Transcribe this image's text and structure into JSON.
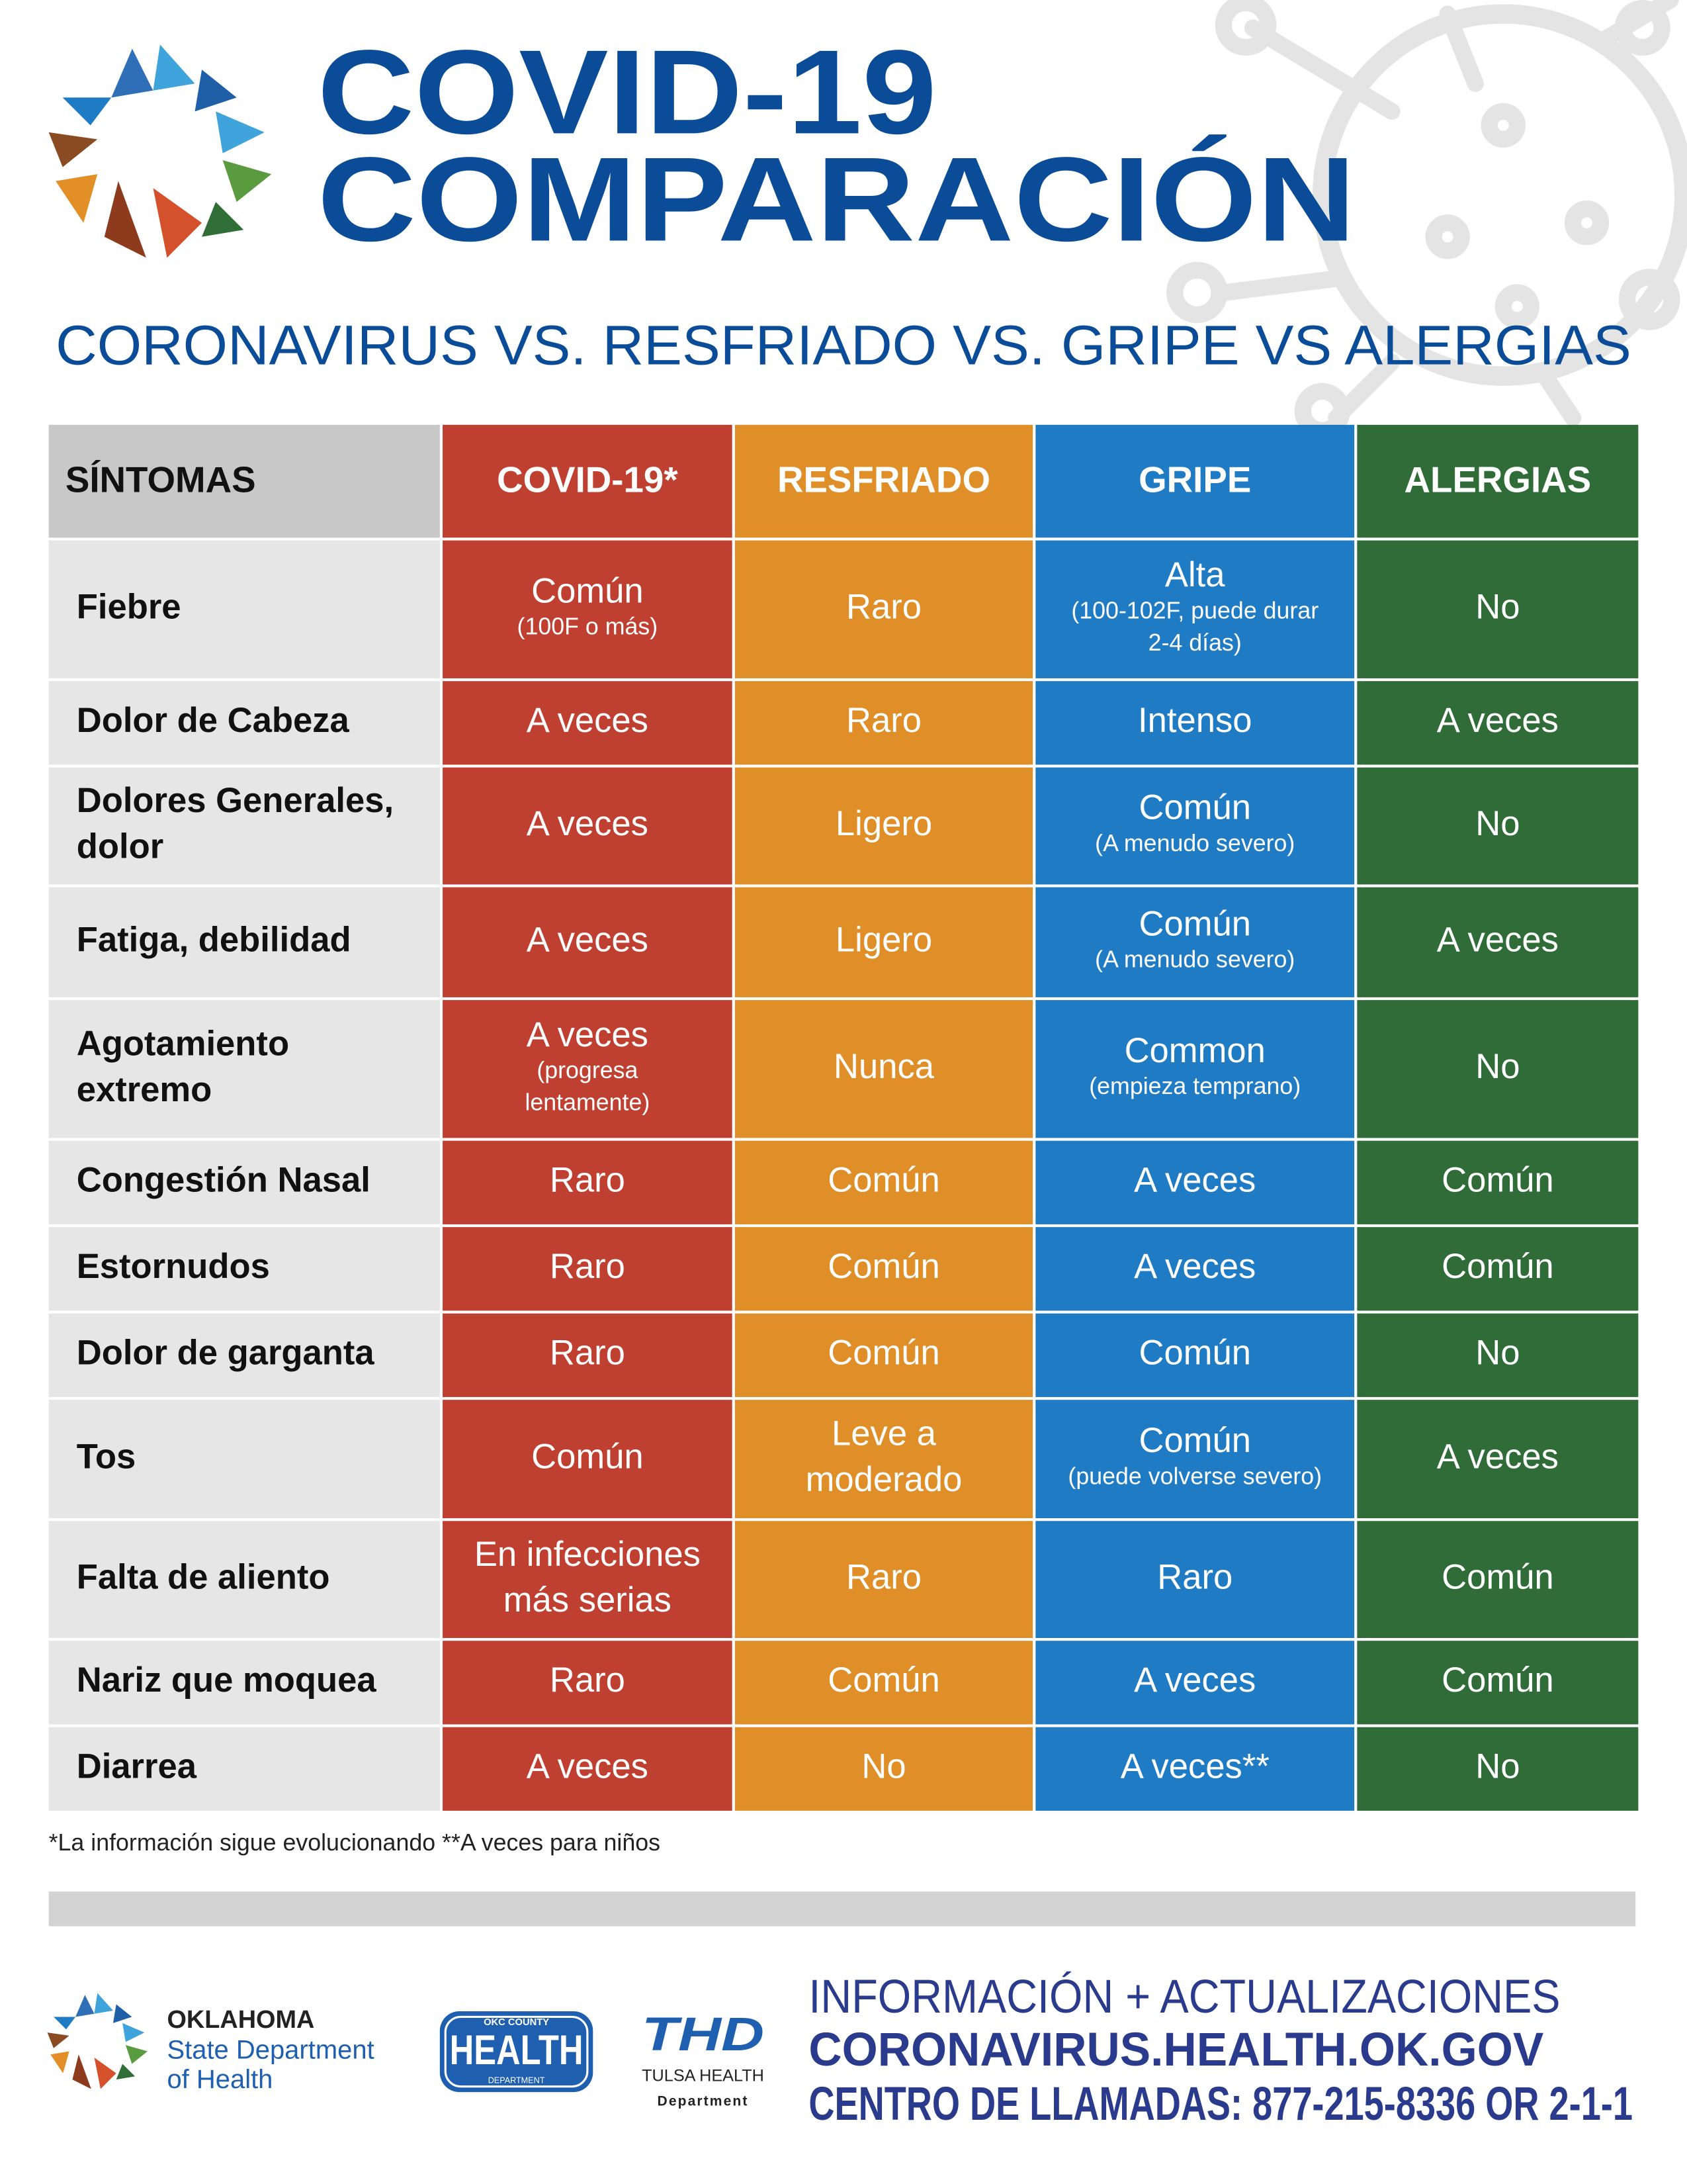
{
  "header": {
    "title_line1": "COVID-19",
    "title_line2": "COMPARACIÓN",
    "subtitle": "CORONAVIRUS VS. RESFRIADO VS. GRIPE VS ALERGIAS"
  },
  "table": {
    "columns": [
      "SÍNTOMAS",
      "COVID-19*",
      "RESFRIADO",
      "GRIPE",
      "ALERGIAS"
    ],
    "rows": [
      {
        "symptom": [
          "Fiebre"
        ],
        "cells": [
          {
            "text": [
              "Común"
            ],
            "note": [
              "(100F o más)"
            ]
          },
          {
            "text": [
              "Raro"
            ]
          },
          {
            "text": [
              "Alta"
            ],
            "note": [
              "(100-102F, puede durar",
              "2-4 días)"
            ]
          },
          {
            "text": [
              "No"
            ]
          }
        ]
      },
      {
        "symptom": [
          "Dolor de Cabeza"
        ],
        "cells": [
          {
            "text": [
              "A veces"
            ]
          },
          {
            "text": [
              "Raro"
            ]
          },
          {
            "text": [
              "Intenso"
            ]
          },
          {
            "text": [
              "A veces"
            ]
          }
        ]
      },
      {
        "symptom": [
          "Dolores Generales,",
          "dolor"
        ],
        "cells": [
          {
            "text": [
              "A veces"
            ]
          },
          {
            "text": [
              "Ligero"
            ]
          },
          {
            "text": [
              "Común"
            ],
            "note": [
              "(A menudo severo)"
            ]
          },
          {
            "text": [
              "No"
            ]
          }
        ]
      },
      {
        "symptom": [
          "Fatiga, debilidad"
        ],
        "cells": [
          {
            "text": [
              "A veces"
            ]
          },
          {
            "text": [
              "Ligero"
            ]
          },
          {
            "text": [
              "Común"
            ],
            "note": [
              "(A menudo severo)"
            ]
          },
          {
            "text": [
              "A veces"
            ]
          }
        ]
      },
      {
        "symptom": [
          "Agotamiento",
          "extremo"
        ],
        "cells": [
          {
            "text": [
              "A veces"
            ],
            "note": [
              "(progresa",
              "lentamente)"
            ]
          },
          {
            "text": [
              "Nunca"
            ]
          },
          {
            "text": [
              "Common"
            ],
            "note": [
              "(empieza temprano)"
            ]
          },
          {
            "text": [
              "No"
            ]
          }
        ]
      },
      {
        "symptom": [
          "Congestión Nasal"
        ],
        "cells": [
          {
            "text": [
              "Raro"
            ]
          },
          {
            "text": [
              "Común"
            ]
          },
          {
            "text": [
              "A veces"
            ]
          },
          {
            "text": [
              "Común"
            ]
          }
        ]
      },
      {
        "symptom": [
          "Estornudos"
        ],
        "cells": [
          {
            "text": [
              "Raro"
            ]
          },
          {
            "text": [
              "Común"
            ]
          },
          {
            "text": [
              "A veces"
            ]
          },
          {
            "text": [
              "Común"
            ]
          }
        ]
      },
      {
        "symptom": [
          "Dolor de garganta"
        ],
        "cells": [
          {
            "text": [
              "Raro"
            ]
          },
          {
            "text": [
              "Común"
            ]
          },
          {
            "text": [
              "Común"
            ]
          },
          {
            "text": [
              "No"
            ]
          }
        ]
      },
      {
        "symptom": [
          "Tos"
        ],
        "cells": [
          {
            "text": [
              "Común"
            ]
          },
          {
            "text": [
              "Leve a",
              "moderado"
            ]
          },
          {
            "text": [
              "Común"
            ],
            "note": [
              "(puede volverse severo)"
            ]
          },
          {
            "text": [
              "A veces"
            ]
          }
        ]
      },
      {
        "symptom": [
          "Falta de aliento"
        ],
        "cells": [
          {
            "text": [
              "En infecciones",
              "más serias"
            ]
          },
          {
            "text": [
              "Raro"
            ]
          },
          {
            "text": [
              "Raro"
            ]
          },
          {
            "text": [
              "Común"
            ]
          }
        ]
      },
      {
        "symptom": [
          "Nariz que moquea"
        ],
        "cells": [
          {
            "text": [
              "Raro"
            ]
          },
          {
            "text": [
              "Común"
            ]
          },
          {
            "text": [
              "A veces"
            ]
          },
          {
            "text": [
              "Común"
            ]
          }
        ]
      },
      {
        "symptom": [
          "Diarrea"
        ],
        "cells": [
          {
            "text": [
              "A veces"
            ]
          },
          {
            "text": [
              "No"
            ]
          },
          {
            "text": [
              "A veces**"
            ]
          },
          {
            "text": [
              "No"
            ]
          }
        ]
      }
    ]
  },
  "footnote": "*La información sigue evolucionando **A veces para niños",
  "footer": {
    "osdh": [
      "OKLAHOMA",
      "State Department",
      "of Health"
    ],
    "okc": {
      "top": "OKC COUNTY",
      "main": "HEALTH",
      "bottom": "DEPARTMENT"
    },
    "thd": {
      "logo": "THD",
      "name": "TULSA HEALTH",
      "sub": "Department"
    },
    "info": "INFORMACIÓN + ACTUALIZACIONES",
    "url": "CORONAVIRUS.HEALTH.OK.GOV",
    "phone": "CENTRO DE LLAMADAS: 877-215-8336 OR 2-1-1"
  }
}
